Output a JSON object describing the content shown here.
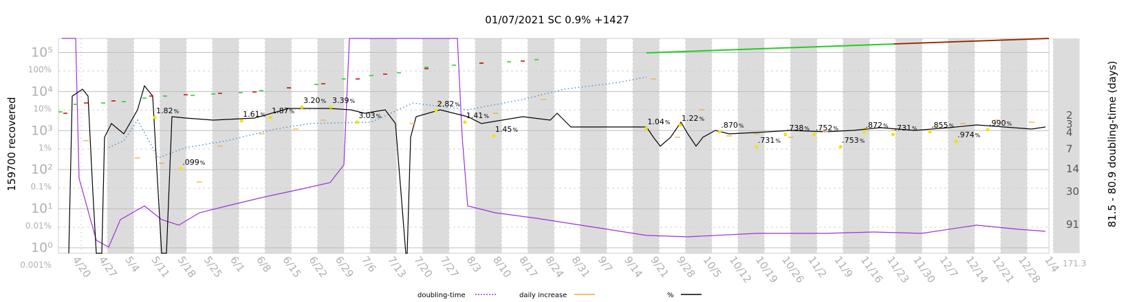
{
  "chart_data": {
    "type": "line",
    "title": "01/07/2021 SC 0.9% +1427",
    "ylabel_left": "159700 recovered",
    "ylabel_right": "81.5 - 80.9 doubling-time (days)",
    "y_left_log_ticks": [
      "10⁵",
      "10⁴",
      "10³",
      "10²",
      "10¹",
      "10⁰"
    ],
    "y_left_pct_ticks": [
      "100%",
      "10%",
      "1%",
      "0.1%",
      "0.01%",
      "0.001%"
    ],
    "y_right_ticks": [
      "2",
      "3",
      "4",
      "7",
      "14",
      "30",
      "91"
    ],
    "y_right_extra": "171.3",
    "x_ticks": [
      "4/20",
      "4/27",
      "5/4",
      "5/11",
      "5/18",
      "5/25",
      "6/1",
      "6/8",
      "6/15",
      "6/22",
      "6/29",
      "7/6",
      "7/13",
      "7/20",
      "7/27",
      "8/3",
      "8/10",
      "8/17",
      "8/24",
      "8/31",
      "9/7",
      "9/14",
      "9/21",
      "9/28",
      "10/5",
      "10/12",
      "10/19",
      "10/26",
      "11/2",
      "11/9",
      "11/16",
      "11/23",
      "11/30",
      "12/7",
      "12/14",
      "12/21",
      "12/28",
      "1/4"
    ],
    "percent_annotations": [
      {
        "label": "1.82",
        "date_index": 3.3
      },
      {
        "label": "1.61",
        "date_index": 6.6
      },
      {
        "label": "1.87",
        "date_index": 7.7
      },
      {
        "label": "3.20",
        "date_index": 8.9
      },
      {
        "label": "3.39",
        "date_index": 10.0
      },
      {
        "label": ".099",
        "date_index": 4.3
      },
      {
        "label": "3.03",
        "date_index": 11.0
      },
      {
        "label": "2.82",
        "date_index": 14.0
      },
      {
        "label": "1.41",
        "date_index": 15.1
      },
      {
        "label": "1.45",
        "date_index": 16.2
      },
      {
        "label": "1.04",
        "date_index": 22.0
      },
      {
        "label": "1.22",
        "date_index": 23.3
      },
      {
        "label": ".870",
        "date_index": 24.8
      },
      {
        "label": ".731",
        "date_index": 26.2
      },
      {
        "label": ".738",
        "date_index": 27.3
      },
      {
        "label": ".752",
        "date_index": 28.4
      },
      {
        "label": ".753",
        "date_index": 29.4
      },
      {
        "label": ".872",
        "date_index": 30.3
      },
      {
        "label": ".731",
        "date_index": 31.4
      },
      {
        "label": ".855",
        "date_index": 32.8
      },
      {
        "label": ".974",
        "date_index": 33.8
      },
      {
        "label": ".990",
        "date_index": 35.0
      }
    ],
    "pct_suffix": "%",
    "legend": [
      {
        "label": "doubling-time",
        "color": "#9b30d9",
        "style": "dotted"
      },
      {
        "label": "daily increase",
        "color": "#f0a830",
        "style": "solid"
      },
      {
        "label": "%",
        "color": "#000000",
        "style": "solid"
      }
    ],
    "grid": true,
    "log_scale_left": true,
    "colors": {
      "purple": "#9b30d9",
      "orange": "#f0a830",
      "blue_dotted": "#5090c8",
      "green": "#22cc22",
      "red": "#cc0000",
      "band": "#dcdcdc"
    }
  }
}
